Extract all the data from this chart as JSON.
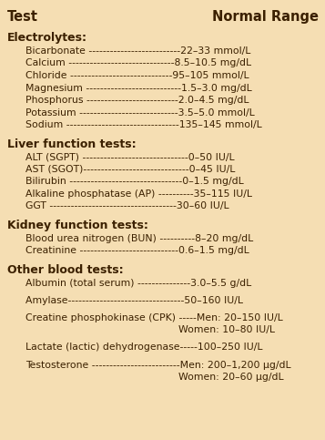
{
  "bg_color": "#f5deb3",
  "title_test": "Test",
  "title_range": "Normal Range",
  "text_color": "#3b2000",
  "title_fontsize": 10.5,
  "header_fontsize": 9.0,
  "row_fontsize": 7.8,
  "figsize": [
    3.57,
    4.83
  ],
  "dpi": 100,
  "sections": [
    {
      "header": "Electrolytes:",
      "rows": [
        {
          "test": "Bicarbonate --------------------------",
          "range": "22–33 mmol/L"
        },
        {
          "test": "Calcium ------------------------------",
          "range": "8.5–10.5 mg/dL"
        },
        {
          "test": "Chloride -----------------------------",
          "range": "95–105 mmol/L"
        },
        {
          "test": "Magnesium ---------------------------",
          "range": "1.5–3.0 mg/dL"
        },
        {
          "test": "Phosphorus --------------------------",
          "range": "2.0–4.5 mg/dL"
        },
        {
          "test": "Potassium ----------------------------",
          "range": "3.5–5.0 mmol/L"
        },
        {
          "test": "Sodium --------------------------------",
          "range": "135–145 mmol/L"
        }
      ]
    },
    {
      "header": "Liver function tests:",
      "rows": [
        {
          "test": "ALT (SGPT) ------------------------------",
          "range": "0–50 IU/L"
        },
        {
          "test": "AST (SGOT)------------------------------",
          "range": "0–45 IU/L"
        },
        {
          "test": "Bilirubin --------------------------------",
          "range": "0–1.5 mg/dL"
        },
        {
          "test": "Alkaline phosphatase (AP) ----------",
          "range": "35–115 IU/L"
        },
        {
          "test": "GGT ------------------------------------",
          "range": "30–60 IU/L"
        }
      ]
    },
    {
      "header": "Kidney function tests:",
      "rows": [
        {
          "test": "Blood urea nitrogen (BUN) ----------",
          "range": "8–20 mg/dL"
        },
        {
          "test": "Creatinine ----------------------------",
          "range": "0.6–1.5 mg/dL"
        }
      ]
    },
    {
      "header": "Other blood tests:",
      "rows": [
        {
          "test": "Albumin (total serum) ---------------",
          "range": "3.0–5.5 g/dL"
        },
        {
          "test": "",
          "range": "",
          "gap": true
        },
        {
          "test": "Amylase---------------------------------",
          "range": "50–160 IU/L"
        },
        {
          "test": "",
          "range": "",
          "gap": true
        },
        {
          "test": "Creatine phosphokinase (CPK) -----",
          "range": "Men: 20–150 IU/L"
        },
        {
          "test": "",
          "range": "Women: 10–80 IU/L",
          "continuation": true
        },
        {
          "test": "",
          "range": "",
          "gap": true
        },
        {
          "test": "Lactate (lactic) dehydrogenase-----",
          "range": "100–250 IU/L"
        },
        {
          "test": "",
          "range": "",
          "gap": true
        },
        {
          "test": "Testosterone -------------------------",
          "range": "Men: 200–1,200 μg/dL"
        },
        {
          "test": "",
          "range": "Women: 20–60 μg/dL",
          "continuation": true
        }
      ]
    }
  ]
}
